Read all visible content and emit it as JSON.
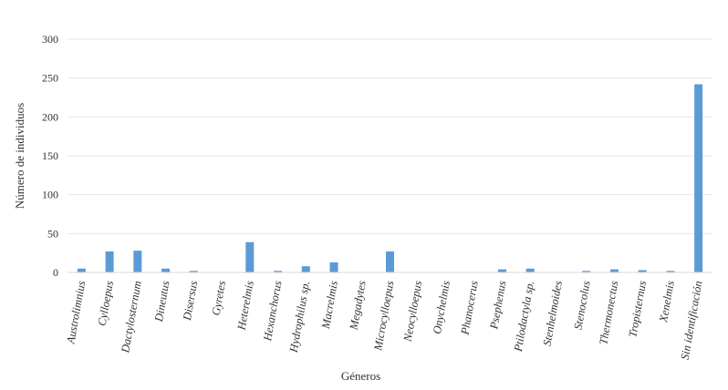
{
  "chart_data": {
    "type": "bar",
    "title": "",
    "xlabel": "Géneros",
    "ylabel": "Número de individuos",
    "ylim": [
      0,
      300
    ],
    "yticks": [
      0,
      50,
      100,
      150,
      200,
      250,
      300
    ],
    "grid": true,
    "legend": "none",
    "bar_color": "#5b9bd5",
    "categories": [
      "Austrolimnius",
      "Cylloepus",
      "Dactylosternum",
      "Dineutus",
      "Disersus",
      "Gyretes",
      "Heterelmis",
      "Hexanchorus",
      "Hydrophilus sp.",
      "Macrelmis",
      "Megadytes",
      "Microcylloepus",
      "Neocylloepus",
      "Onychelmis",
      "Phanocerus",
      "Psephenus",
      "Ptilodactyla sp.",
      "Stenhelmoides",
      "Stenocolus",
      "Thermonectus",
      "Tropisternus",
      "Xenelmis",
      "Sin identificación"
    ],
    "values": [
      5,
      27,
      28,
      5,
      2,
      0,
      39,
      2,
      8,
      13,
      0,
      27,
      0,
      0,
      0,
      4,
      5,
      0,
      2,
      4,
      3,
      2,
      242
    ]
  }
}
